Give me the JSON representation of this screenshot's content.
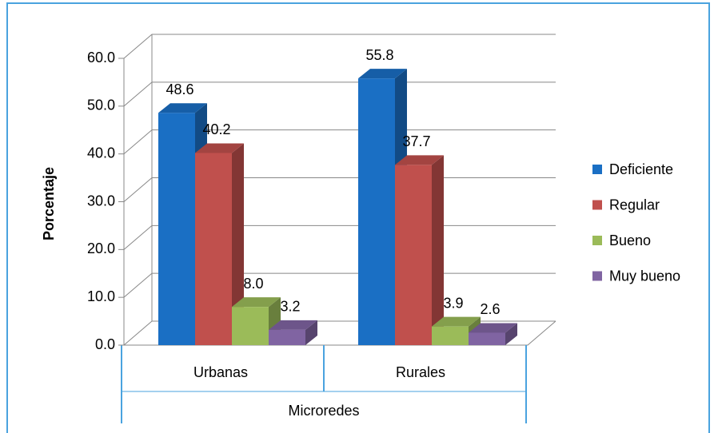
{
  "chart_data": {
    "type": "bar3d",
    "categories": [
      "Urbanas",
      "Rurales"
    ],
    "x_label": "Microredes",
    "y_label": "Porcentaje",
    "ylim": [
      0,
      60
    ],
    "yticks": [
      {
        "value": 0,
        "label": "0.0"
      },
      {
        "value": 10,
        "label": "10.0"
      },
      {
        "value": 20,
        "label": "20.0"
      },
      {
        "value": 30,
        "label": "30.0"
      },
      {
        "value": 40,
        "label": "40.0"
      },
      {
        "value": 50,
        "label": "50.0"
      },
      {
        "value": 60,
        "label": "60.0"
      }
    ],
    "grid": true,
    "legend": "right",
    "series": [
      {
        "name": "Deficiente",
        "color": "#1a6fc4",
        "values": [
          48.6,
          55.8
        ],
        "value_labels": [
          "48.6",
          "55.8"
        ]
      },
      {
        "name": "Regular",
        "color": "#c0504d",
        "values": [
          40.2,
          37.7
        ],
        "value_labels": [
          "40.2",
          "37.7"
        ]
      },
      {
        "name": "Bueno",
        "color": "#9bbb59",
        "values": [
          8,
          3.9
        ],
        "value_labels": [
          "8.0",
          "3.9"
        ]
      },
      {
        "name": "Muy bueno",
        "color": "#8064a2",
        "values": [
          3.2,
          2.6
        ],
        "value_labels": [
          "3.2",
          "2.6"
        ]
      }
    ]
  }
}
